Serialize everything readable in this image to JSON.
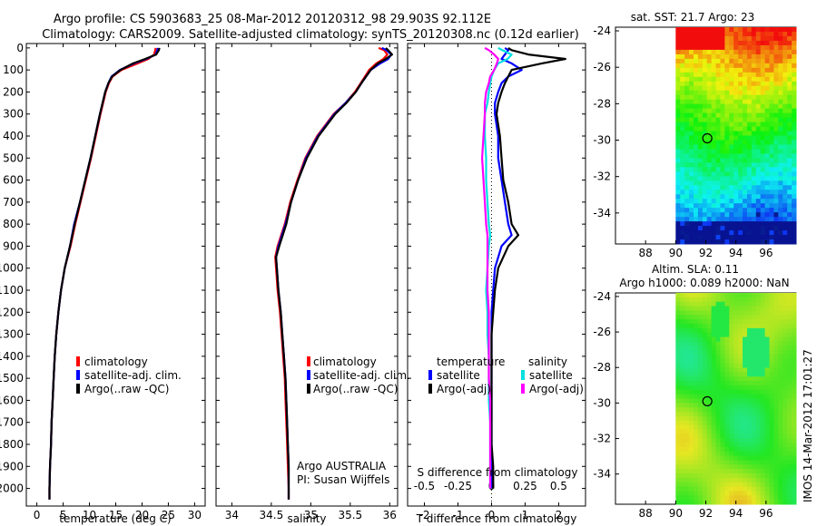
{
  "header": {
    "line1": "Argo profile: CS 5903683_25 08-Mar-2012 20120312_98 29.903S 92.112E",
    "line2": "Climatology: CARS2009. Satellite-adjusted climatology: synTS_20120308.nc (0.12d earlier)"
  },
  "stamp": "IMOS 14-Mar-2012 17:01:27",
  "colors": {
    "clim": "#ff0000",
    "sat": "#0000ff",
    "argo": "#000000",
    "sat_s": "#00e0e0",
    "argo_s": "#ff00ff"
  },
  "chart_data": [
    {
      "type": "line",
      "name": "temperature-profile",
      "xlabel": "temperature (deg C)",
      "xlim": [
        -2,
        32
      ],
      "ylim": [
        2080,
        -20
      ],
      "xticks": [
        0,
        5,
        10,
        15,
        20,
        25,
        30
      ],
      "yticks": [
        0,
        100,
        200,
        300,
        400,
        500,
        600,
        700,
        800,
        900,
        1000,
        1100,
        1200,
        1300,
        1400,
        1500,
        1600,
        1700,
        1800,
        1900,
        2000
      ],
      "depth": [
        0,
        10,
        30,
        50,
        70,
        100,
        130,
        160,
        200,
        250,
        300,
        400,
        500,
        600,
        700,
        800,
        900,
        1000,
        1100,
        1200,
        1300,
        1400,
        1500,
        1600,
        1700,
        1800,
        1900,
        2000,
        2050
      ],
      "series": [
        {
          "name": "climatology",
          "color_key": "clim",
          "values": [
            22.6,
            22.5,
            22.3,
            21.2,
            19.2,
            16.1,
            14.4,
            13.7,
            13.1,
            12.6,
            12.1,
            11.2,
            10.3,
            9.3,
            8.3,
            7.3,
            6.4,
            5.3,
            4.6,
            4.1,
            3.7,
            3.4,
            3.2,
            3.0,
            2.8,
            2.7,
            2.5,
            2.4,
            2.4
          ]
        },
        {
          "name": "satellite-adj. clim.",
          "color_key": "sat",
          "values": [
            23.0,
            22.9,
            22.6,
            20.8,
            18.5,
            15.8,
            14.2,
            13.6,
            13.0,
            12.5,
            12.0,
            11.1,
            10.2,
            9.2,
            8.2,
            7.1,
            6.3,
            5.3,
            4.6,
            4.1,
            3.7,
            3.4,
            3.2,
            3.0,
            2.8,
            2.7,
            2.5,
            2.4,
            2.4
          ]
        },
        {
          "name": "Argo(..raw -QC)",
          "color_key": "argo",
          "values": [
            23.3,
            23.2,
            22.7,
            20.6,
            18.3,
            15.9,
            14.3,
            13.6,
            13.0,
            12.5,
            12.0,
            11.1,
            10.2,
            9.2,
            8.2,
            7.2,
            6.3,
            5.3,
            4.6,
            4.1,
            3.7,
            3.4,
            3.2,
            3.0,
            2.8,
            2.7,
            2.5,
            2.4,
            2.4
          ]
        }
      ],
      "legend": {
        "location": "center-left"
      }
    },
    {
      "type": "line",
      "name": "salinity-profile",
      "xlabel": "salinity",
      "xlim": [
        33.8,
        36.1
      ],
      "ylim": [
        2080,
        -20
      ],
      "xticks": [
        34,
        34.5,
        35,
        35.5,
        36
      ],
      "depth": [
        0,
        10,
        30,
        50,
        70,
        100,
        150,
        200,
        250,
        300,
        400,
        500,
        600,
        700,
        800,
        900,
        950,
        1000,
        1100,
        1200,
        1300,
        1400,
        1500,
        1600,
        1700,
        1800,
        1900,
        2000,
        2050
      ],
      "series": [
        {
          "name": "climatology",
          "color_key": "clim",
          "values": [
            35.86,
            35.93,
            35.97,
            35.92,
            35.83,
            35.74,
            35.65,
            35.56,
            35.44,
            35.29,
            35.08,
            34.93,
            34.83,
            34.74,
            34.67,
            34.58,
            34.55,
            34.56,
            34.58,
            34.61,
            34.63,
            34.65,
            34.67,
            34.68,
            34.69,
            34.7,
            34.71,
            34.72,
            34.72
          ]
        },
        {
          "name": "satellite-adj. clim.",
          "color_key": "sat",
          "values": [
            35.9,
            35.96,
            36.02,
            35.98,
            35.88,
            35.76,
            35.66,
            35.57,
            35.44,
            35.3,
            35.09,
            34.94,
            34.84,
            34.75,
            34.68,
            34.59,
            34.56,
            34.57,
            34.59,
            34.62,
            34.64,
            34.66,
            34.68,
            34.69,
            34.7,
            34.71,
            34.72,
            34.72,
            34.72
          ]
        },
        {
          "name": "Argo(..raw -QC)",
          "color_key": "argo",
          "values": [
            35.95,
            35.98,
            36.03,
            35.95,
            35.85,
            35.76,
            35.66,
            35.57,
            35.45,
            35.31,
            35.1,
            34.95,
            34.84,
            34.75,
            34.69,
            34.6,
            34.56,
            34.57,
            34.59,
            34.62,
            34.64,
            34.66,
            34.68,
            34.69,
            34.7,
            34.71,
            34.72,
            34.72,
            34.72
          ]
        }
      ],
      "legend": {
        "location": "center-left"
      },
      "annotation": [
        "Argo AUSTRALIA",
        "PI: Susan Wijffels"
      ]
    },
    {
      "type": "line",
      "name": "difference-profile",
      "xlabel": "T difference from climatology",
      "top_xlabel": "S difference from climatology",
      "xlim": [
        -2.5,
        2.8
      ],
      "ylim": [
        2080,
        -20
      ],
      "xticks": [
        -2,
        -1,
        0,
        1,
        2
      ],
      "s_ticks": [
        "-0.5",
        "-0.25",
        "0",
        "0.25",
        "0.5"
      ],
      "depth": [
        0,
        10,
        30,
        50,
        70,
        100,
        130,
        160,
        200,
        250,
        300,
        400,
        500,
        600,
        700,
        800,
        850,
        900,
        1000,
        1100,
        1200,
        1300,
        1400,
        1500,
        1600,
        1700,
        1800,
        1900,
        2000
      ],
      "series": [
        {
          "name": "satellite",
          "group": "temperature",
          "color_key": "sat",
          "values": [
            0.4,
            0.5,
            0.4,
            0.3,
            0.6,
            0.9,
            0.5,
            0.3,
            0.2,
            0.1,
            0.1,
            0.2,
            0.2,
            0.3,
            0.4,
            0.5,
            0.6,
            0.3,
            0.1,
            0.05,
            0.0,
            0.0,
            0.0,
            0.0,
            0.0,
            0.0,
            0.0,
            0.0,
            0.0
          ]
        },
        {
          "name": "Argo(-adj)",
          "group": "temperature",
          "color_key": "argo",
          "values": [
            0.5,
            0.6,
            1.1,
            2.2,
            1.5,
            0.6,
            0.5,
            0.4,
            0.3,
            0.2,
            0.15,
            0.25,
            0.3,
            0.35,
            0.5,
            0.6,
            0.8,
            0.5,
            0.2,
            0.1,
            0.05,
            0.0,
            0.0,
            0.0,
            0.0,
            0.0,
            0.0,
            0.05,
            0.05
          ]
        },
        {
          "name": "satellite",
          "group": "salinity",
          "color_key": "sat_s",
          "values": [
            0.05,
            0.08,
            0.15,
            0.12,
            0.05,
            0.02,
            0.0,
            -0.01,
            -0.02,
            -0.03,
            -0.05,
            -0.05,
            -0.04,
            -0.04,
            -0.03,
            -0.02,
            -0.01,
            -0.02,
            -0.03,
            -0.04,
            -0.03,
            -0.03,
            -0.02,
            -0.02,
            -0.02,
            -0.01,
            -0.01,
            -0.01,
            -0.01
          ]
        },
        {
          "name": "Argo(-adj)",
          "group": "salinity",
          "color_key": "argo_s",
          "values": [
            -0.05,
            -0.02,
            0.02,
            0.05,
            0.04,
            0.02,
            -0.01,
            -0.02,
            -0.04,
            -0.05,
            -0.05,
            -0.06,
            -0.07,
            -0.06,
            -0.05,
            -0.04,
            -0.03,
            -0.03,
            -0.03,
            -0.03,
            -0.02,
            -0.02,
            -0.02,
            -0.02,
            -0.01,
            -0.01,
            -0.01,
            -0.01,
            -0.01
          ]
        }
      ],
      "legend": {
        "groups": [
          "temperature",
          "salinity"
        ],
        "location": "center"
      }
    },
    {
      "type": "heatmap",
      "name": "sst-map",
      "title": "sat. SST: 21.7  Argo: 23",
      "xlim": [
        86,
        98
      ],
      "ylim": [
        -35.7,
        -23.8
      ],
      "xticks": [
        88,
        90,
        92,
        94,
        96
      ],
      "yticks": [
        -24,
        -26,
        -28,
        -30,
        -32,
        -34
      ],
      "data_xmin": 90,
      "argo_lon": 92.1,
      "argo_lat": -29.9
    },
    {
      "type": "heatmap",
      "name": "sla-map",
      "title_lines": [
        "Altim. SLA: 0.11",
        "Argo h1000: 0.089  h2000: NaN"
      ],
      "xlim": [
        86,
        98
      ],
      "ylim": [
        -35.7,
        -23.8
      ],
      "xticks": [
        88,
        90,
        92,
        94,
        96
      ],
      "yticks": [
        -24,
        -26,
        -28,
        -30,
        -32,
        -34
      ],
      "data_xmin": 90,
      "argo_lon": 92.1,
      "argo_lat": -29.9
    }
  ]
}
